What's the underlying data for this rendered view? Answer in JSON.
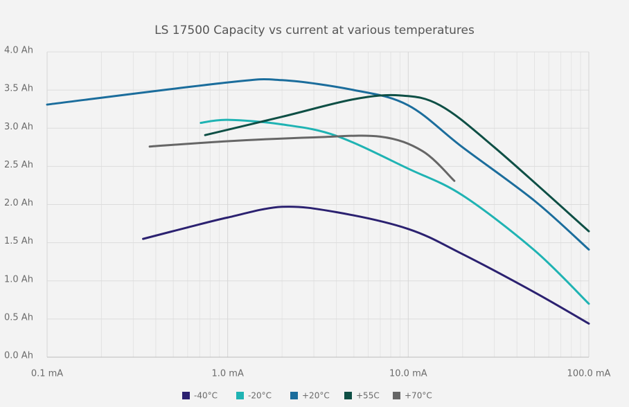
{
  "chart_data": {
    "type": "line",
    "title": "LS 17500 Capacity vs current at various temperatures",
    "xlog": true,
    "grid": true,
    "legend": "bottom",
    "xlim": [
      0.1,
      100
    ],
    "xticks": [
      {
        "value": 0.1,
        "label": "0.1 mA"
      },
      {
        "value": 1,
        "label": "1.0 mA"
      },
      {
        "value": 10,
        "label": "10.0 mA"
      },
      {
        "value": 100,
        "label": "100.0 mA"
      }
    ],
    "ylim": [
      0,
      4
    ],
    "yticks": [
      {
        "value": 0,
        "label": "0.0 Ah"
      },
      {
        "value": 0.5,
        "label": "0.5 Ah"
      },
      {
        "value": 1,
        "label": "1.0 Ah"
      },
      {
        "value": 1.5,
        "label": "1.5 Ah"
      },
      {
        "value": 2,
        "label": "2.0 Ah"
      },
      {
        "value": 2.5,
        "label": "2.5 Ah"
      },
      {
        "value": 3,
        "label": "3.0 Ah"
      },
      {
        "value": 3.5,
        "label": "3.5 Ah"
      },
      {
        "value": 4,
        "label": "4.0 Ah"
      }
    ],
    "series": [
      {
        "name": "-40°C",
        "color": "#2b2170",
        "x": [
          0.34,
          0.6,
          1,
          2,
          4,
          10,
          20,
          50,
          100
        ],
        "values": [
          1.55,
          1.7,
          1.83,
          1.97,
          1.9,
          1.68,
          1.35,
          0.85,
          0.44
        ]
      },
      {
        "name": "-20°C",
        "color": "#1fb3b3",
        "x": [
          0.71,
          1,
          2,
          4,
          10,
          20,
          50,
          100
        ],
        "values": [
          3.07,
          3.11,
          3.05,
          2.9,
          2.47,
          2.12,
          1.4,
          0.7
        ]
      },
      {
        "name": "+20°C",
        "color": "#1b6d9c",
        "x": [
          0.1,
          1,
          2,
          5,
          10,
          20,
          50,
          100
        ],
        "values": [
          3.31,
          3.6,
          3.63,
          3.5,
          3.3,
          2.75,
          2.05,
          1.41
        ]
      },
      {
        "name": "+55C",
        "color": "#0e4f45",
        "x": [
          0.75,
          2,
          5,
          9,
          15,
          30,
          100
        ],
        "values": [
          2.91,
          3.15,
          3.38,
          3.43,
          3.3,
          2.75,
          1.65
        ]
      },
      {
        "name": "+70°C",
        "color": "#666666",
        "x": [
          0.37,
          1,
          3,
          7,
          12,
          18
        ],
        "values": [
          2.76,
          2.83,
          2.88,
          2.89,
          2.7,
          2.31
        ]
      }
    ]
  }
}
